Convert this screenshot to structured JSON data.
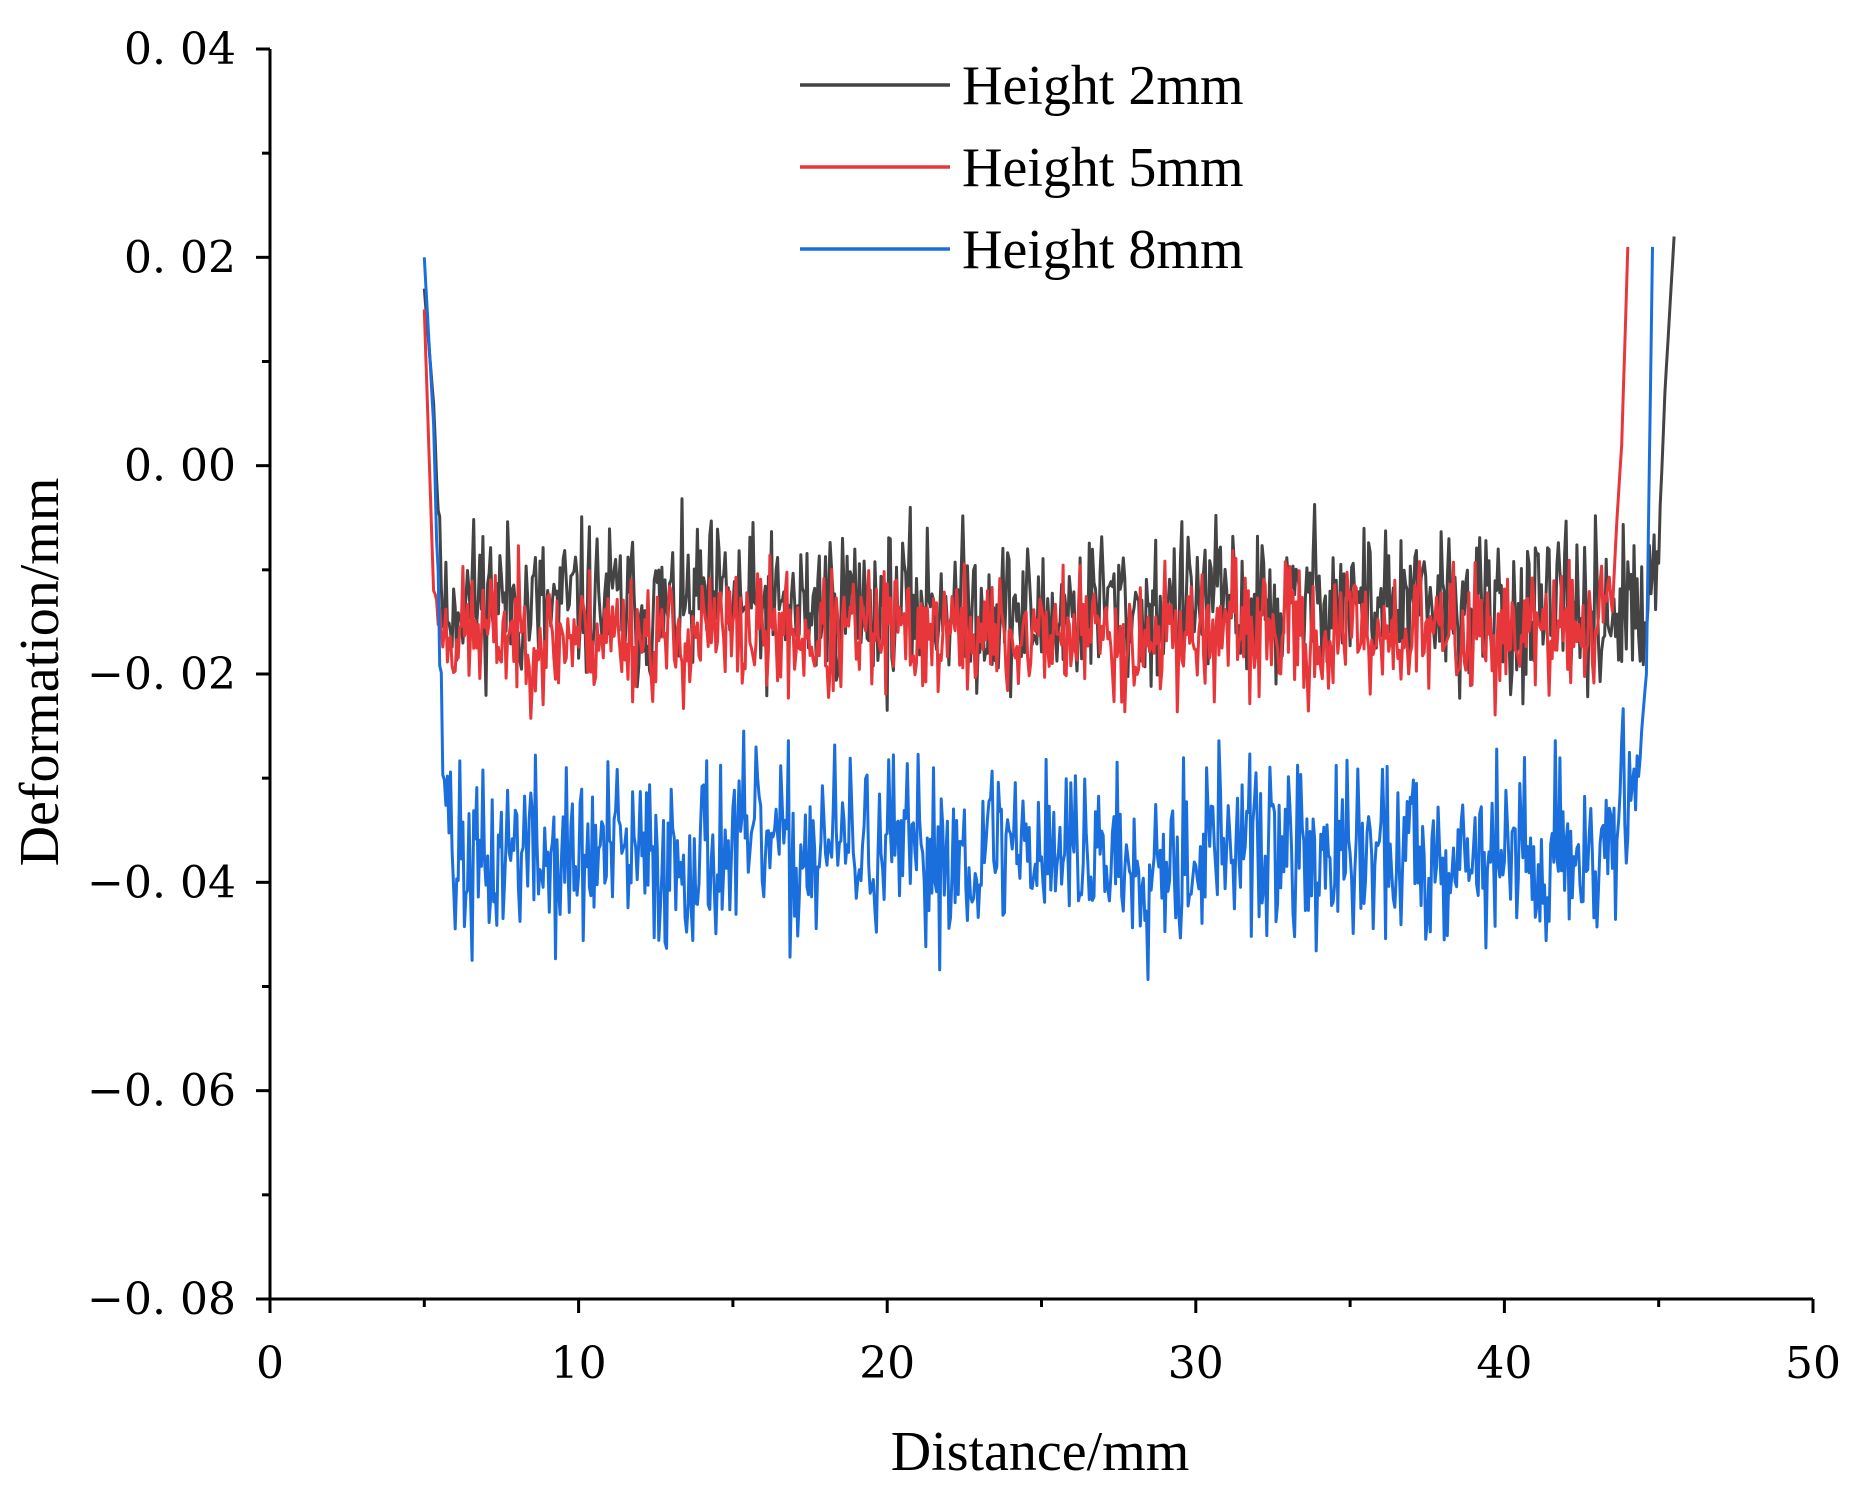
{
  "chart_data": {
    "type": "line",
    "title": "",
    "xlabel": "Distance/mm",
    "ylabel": "Deformation/mm",
    "xlim": [
      0,
      50
    ],
    "ylim": [
      -0.08,
      0.04
    ],
    "x_ticks": [
      0,
      10,
      20,
      30,
      40,
      50
    ],
    "x_tick_labels": [
      "0",
      "10",
      "20",
      "30",
      "40",
      "50"
    ],
    "y_ticks": [
      -0.08,
      -0.06,
      -0.04,
      -0.02,
      0.0,
      0.02,
      0.04
    ],
    "y_tick_labels": [
      "−0. 08",
      "−0. 06",
      "−0. 04",
      "−0. 02",
      "0. 00",
      "0. 02",
      "0. 04"
    ],
    "grid": false,
    "legend_position": "top-center",
    "series": [
      {
        "name": "Height 2mm",
        "color": "#444444",
        "x": [
          5.0,
          5.3,
          5.6,
          6.0,
          7.0,
          8.0,
          9.0,
          10.0,
          11.0,
          12.0,
          13.0,
          14.0,
          15.0,
          16.0,
          17.0,
          18.0,
          19.0,
          20.0,
          21.0,
          22.0,
          23.0,
          24.0,
          25.0,
          26.0,
          27.0,
          28.0,
          29.0,
          30.0,
          31.0,
          32.0,
          33.0,
          34.0,
          35.0,
          36.0,
          37.0,
          38.0,
          39.0,
          40.0,
          41.0,
          42.0,
          43.0,
          44.0,
          44.6,
          45.0,
          45.2,
          45.5
        ],
        "y": [
          0.017,
          0.006,
          -0.014,
          -0.013,
          -0.012,
          -0.013,
          -0.014,
          -0.013,
          -0.013,
          -0.014,
          -0.014,
          -0.013,
          -0.013,
          -0.014,
          -0.014,
          -0.013,
          -0.013,
          -0.014,
          -0.013,
          -0.013,
          -0.014,
          -0.014,
          -0.015,
          -0.014,
          -0.013,
          -0.014,
          -0.014,
          -0.013,
          -0.013,
          -0.014,
          -0.014,
          -0.012,
          -0.013,
          -0.013,
          -0.014,
          -0.013,
          -0.014,
          -0.014,
          -0.015,
          -0.014,
          -0.014,
          -0.014,
          -0.015,
          -0.009,
          0.007,
          0.022
        ],
        "noise_amplitude": 0.011,
        "seed": 11
      },
      {
        "name": "Height 5mm",
        "color": "#e8373a",
        "x": [
          5.0,
          5.3,
          5.6,
          6.0,
          7.0,
          8.0,
          9.0,
          10.0,
          11.0,
          12.0,
          13.0,
          14.0,
          15.0,
          16.0,
          17.0,
          18.0,
          19.0,
          20.0,
          21.0,
          22.0,
          23.0,
          24.0,
          25.0,
          26.0,
          27.0,
          28.0,
          29.0,
          30.0,
          31.0,
          32.0,
          33.0,
          34.0,
          35.0,
          36.0,
          37.0,
          38.0,
          39.0,
          40.0,
          41.0,
          42.0,
          43.0,
          43.5,
          43.8,
          44.0
        ],
        "y": [
          0.015,
          -0.012,
          -0.016,
          -0.016,
          -0.016,
          -0.016,
          -0.017,
          -0.016,
          -0.016,
          -0.016,
          -0.017,
          -0.016,
          -0.016,
          -0.016,
          -0.016,
          -0.017,
          -0.016,
          -0.016,
          -0.016,
          -0.016,
          -0.016,
          -0.017,
          -0.016,
          -0.016,
          -0.016,
          -0.017,
          -0.016,
          -0.016,
          -0.016,
          -0.016,
          -0.016,
          -0.017,
          -0.016,
          -0.016,
          -0.016,
          -0.016,
          -0.016,
          -0.016,
          -0.016,
          -0.016,
          -0.015,
          -0.012,
          0.002,
          0.021
        ],
        "noise_amplitude": 0.009,
        "seed": 23
      },
      {
        "name": "Height 8mm",
        "color": "#1b6fdd",
        "x": [
          5.0,
          5.3,
          5.6,
          6.0,
          7.0,
          8.0,
          9.0,
          10.0,
          11.0,
          12.0,
          13.0,
          14.0,
          15.0,
          16.0,
          17.0,
          18.0,
          19.0,
          20.0,
          21.0,
          22.0,
          23.0,
          24.0,
          25.0,
          26.0,
          27.0,
          28.0,
          29.0,
          30.0,
          31.0,
          32.0,
          33.0,
          34.0,
          35.0,
          36.0,
          37.0,
          38.0,
          39.0,
          40.0,
          41.0,
          42.0,
          43.0,
          44.0,
          44.4,
          44.6,
          44.8
        ],
        "y": [
          0.02,
          0.004,
          -0.028,
          -0.038,
          -0.039,
          -0.036,
          -0.038,
          -0.038,
          -0.037,
          -0.038,
          -0.038,
          -0.037,
          -0.037,
          -0.036,
          -0.038,
          -0.036,
          -0.037,
          -0.037,
          -0.038,
          -0.037,
          -0.037,
          -0.036,
          -0.036,
          -0.037,
          -0.037,
          -0.038,
          -0.037,
          -0.037,
          -0.036,
          -0.037,
          -0.037,
          -0.038,
          -0.038,
          -0.037,
          -0.037,
          -0.037,
          -0.037,
          -0.037,
          -0.038,
          -0.037,
          -0.037,
          -0.034,
          -0.027,
          -0.02,
          0.021
        ],
        "noise_amplitude": 0.013,
        "seed": 37
      }
    ]
  }
}
